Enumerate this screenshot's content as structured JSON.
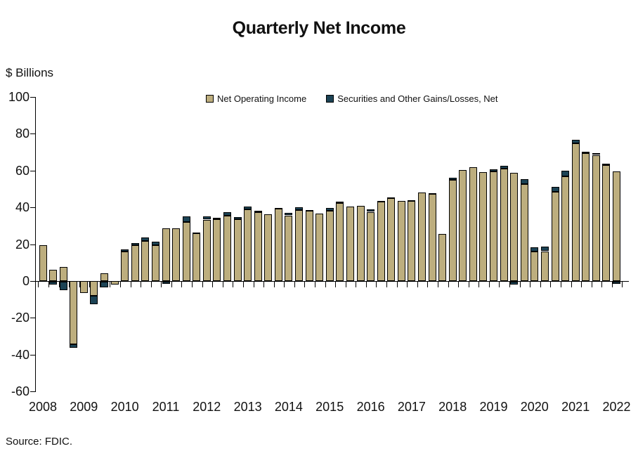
{
  "chart_data": {
    "type": "bar",
    "stacked": true,
    "grid": false,
    "legend_position": "top-center",
    "title": "Quarterly Net Income",
    "y_axis_label": "$ Billions",
    "source": "Source: FDIC.",
    "ylim": [
      -60,
      100
    ],
    "ytick_step": 20,
    "yticks": [
      100,
      80,
      60,
      40,
      20,
      0,
      -20,
      -40,
      -60
    ],
    "year_labels": [
      "2008",
      "2009",
      "2010",
      "2011",
      "2012",
      "2013",
      "2014",
      "2015",
      "2016",
      "2017",
      "2018",
      "2019",
      "2020",
      "2021",
      "2022"
    ],
    "legend": [
      {
        "id": "noi",
        "label": "Net Operating Income",
        "color": "#BDAE7E"
      },
      {
        "id": "sec",
        "label": "Securities and Other Gains/Losses, Net",
        "color": "#1C4355"
      }
    ],
    "series_note": "values in $ billions; noi = Net Operating Income, sec = Securities and Other Gains/Losses (negative values drawn below zero line)",
    "quarters": [
      {
        "year": "2008",
        "quarter": "Q1",
        "noi": 19.3,
        "sec": 0
      },
      {
        "year": "2008",
        "quarter": "Q2",
        "noi": 6.0,
        "sec": -1.5
      },
      {
        "year": "2008",
        "quarter": "Q3",
        "noi": 7.6,
        "sec": -4.5
      },
      {
        "year": "2008",
        "quarter": "Q4",
        "noi": -34.5,
        "sec": -1.6
      },
      {
        "year": "2009",
        "quarter": "Q1",
        "noi": -6.6,
        "sec": 0
      },
      {
        "year": "2009",
        "quarter": "Q2",
        "noi": -8.0,
        "sec": -4.7
      },
      {
        "year": "2009",
        "quarter": "Q3",
        "noi": 4.4,
        "sec": -3.1
      },
      {
        "year": "2009",
        "quarter": "Q4",
        "noi": -1.9,
        "sec": 0
      },
      {
        "year": "2010",
        "quarter": "Q1",
        "noi": 16.0,
        "sec": 1.2
      },
      {
        "year": "2010",
        "quarter": "Q2",
        "noi": 19.4,
        "sec": 1.1
      },
      {
        "year": "2010",
        "quarter": "Q3",
        "noi": 21.6,
        "sec": 2.2
      },
      {
        "year": "2010",
        "quarter": "Q4",
        "noi": 19.6,
        "sec": 1.8
      },
      {
        "year": "2011",
        "quarter": "Q1",
        "noi": 28.7,
        "sec": -1.0
      },
      {
        "year": "2011",
        "quarter": "Q2",
        "noi": 28.5,
        "sec": 0
      },
      {
        "year": "2011",
        "quarter": "Q3",
        "noi": 32.2,
        "sec": 3.0
      },
      {
        "year": "2011",
        "quarter": "Q4",
        "noi": 25.8,
        "sec": 0.5
      },
      {
        "year": "2012",
        "quarter": "Q1",
        "noi": 33.4,
        "sec": 1.8
      },
      {
        "year": "2012",
        "quarter": "Q2",
        "noi": 33.5,
        "sec": 1.0
      },
      {
        "year": "2012",
        "quarter": "Q3",
        "noi": 35.5,
        "sec": 2.1
      },
      {
        "year": "2012",
        "quarter": "Q4",
        "noi": 33.7,
        "sec": 1.0
      },
      {
        "year": "2013",
        "quarter": "Q1",
        "noi": 38.8,
        "sec": 1.5
      },
      {
        "year": "2013",
        "quarter": "Q2",
        "noi": 37.6,
        "sec": 0.5
      },
      {
        "year": "2013",
        "quarter": "Q3",
        "noi": 36.1,
        "sec": 0
      },
      {
        "year": "2013",
        "quarter": "Q4",
        "noi": 39.3,
        "sec": 0.5
      },
      {
        "year": "2014",
        "quarter": "Q1",
        "noi": 35.7,
        "sec": 1.5
      },
      {
        "year": "2014",
        "quarter": "Q2",
        "noi": 38.7,
        "sec": 1.5
      },
      {
        "year": "2014",
        "quarter": "Q3",
        "noi": 38.1,
        "sec": 0.5
      },
      {
        "year": "2014",
        "quarter": "Q4",
        "noi": 36.8,
        "sec": 0
      },
      {
        "year": "2015",
        "quarter": "Q1",
        "noi": 38.3,
        "sec": 1.5
      },
      {
        "year": "2015",
        "quarter": "Q2",
        "noi": 42.5,
        "sec": 0.5
      },
      {
        "year": "2015",
        "quarter": "Q3",
        "noi": 40.4,
        "sec": 0
      },
      {
        "year": "2015",
        "quarter": "Q4",
        "noi": 40.8,
        "sec": 0
      },
      {
        "year": "2016",
        "quarter": "Q1",
        "noi": 37.6,
        "sec": 1.5
      },
      {
        "year": "2016",
        "quarter": "Q2",
        "noi": 43.0,
        "sec": 0.6
      },
      {
        "year": "2016",
        "quarter": "Q3",
        "noi": 45.0,
        "sec": 0.6
      },
      {
        "year": "2016",
        "quarter": "Q4",
        "noi": 43.7,
        "sec": 0
      },
      {
        "year": "2017",
        "quarter": "Q1",
        "noi": 43.4,
        "sec": 0.6
      },
      {
        "year": "2017",
        "quarter": "Q2",
        "noi": 48.3,
        "sec": 0
      },
      {
        "year": "2017",
        "quarter": "Q3",
        "noi": 47.3,
        "sec": 0.6
      },
      {
        "year": "2017",
        "quarter": "Q4",
        "noi": 25.5,
        "sec": 0
      },
      {
        "year": "2018",
        "quarter": "Q1",
        "noi": 55.0,
        "sec": 1.0
      },
      {
        "year": "2018",
        "quarter": "Q2",
        "noi": 60.2,
        "sec": 0
      },
      {
        "year": "2018",
        "quarter": "Q3",
        "noi": 62.0,
        "sec": 0
      },
      {
        "year": "2018",
        "quarter": "Q4",
        "noi": 59.3,
        "sec": 0
      },
      {
        "year": "2019",
        "quarter": "Q1",
        "noi": 59.7,
        "sec": 1.0
      },
      {
        "year": "2019",
        "quarter": "Q2",
        "noi": 61.1,
        "sec": 1.5
      },
      {
        "year": "2019",
        "quarter": "Q3",
        "noi": 58.9,
        "sec": -1.5
      },
      {
        "year": "2019",
        "quarter": "Q4",
        "noi": 52.5,
        "sec": 2.7
      },
      {
        "year": "2020",
        "quarter": "Q1",
        "noi": 16.0,
        "sec": 2.5
      },
      {
        "year": "2020",
        "quarter": "Q2",
        "noi": 16.2,
        "sec": 2.6
      },
      {
        "year": "2020",
        "quarter": "Q3",
        "noi": 48.5,
        "sec": 2.7
      },
      {
        "year": "2020",
        "quarter": "Q4",
        "noi": 57.0,
        "sec": 2.9
      },
      {
        "year": "2021",
        "quarter": "Q1",
        "noi": 74.8,
        "sec": 2.0
      },
      {
        "year": "2021",
        "quarter": "Q2",
        "noi": 69.6,
        "sec": 0.8
      },
      {
        "year": "2021",
        "quarter": "Q3",
        "noi": 68.5,
        "sec": 0.8
      },
      {
        "year": "2021",
        "quarter": "Q4",
        "noi": 63.1,
        "sec": 0.8
      },
      {
        "year": "2022",
        "quarter": "Q1",
        "noi": 59.7,
        "sec": -1.0
      }
    ]
  }
}
